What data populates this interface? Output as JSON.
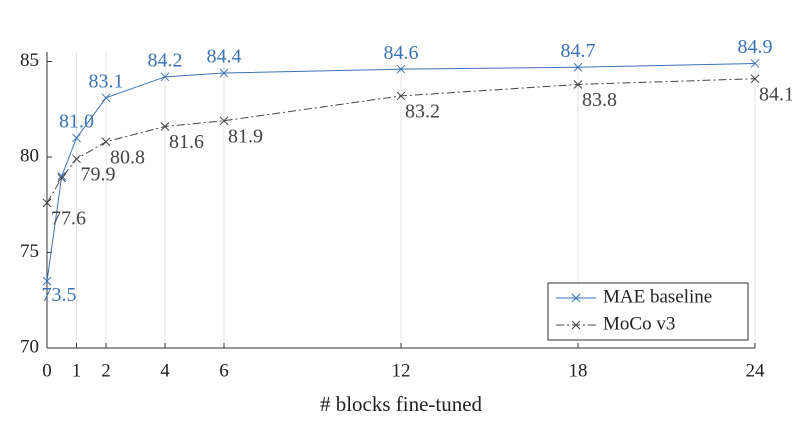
{
  "chart_data": {
    "type": "line",
    "xlabel": "# blocks fine-tuned",
    "x": [
      0,
      0.5,
      1,
      2,
      4,
      6,
      12,
      18,
      24
    ],
    "xlim": [
      0,
      24
    ],
    "xticks": [
      0,
      1,
      2,
      4,
      6,
      12,
      18,
      24
    ],
    "ylim": [
      70,
      85.5
    ],
    "yticks": [
      70,
      75,
      80,
      85
    ],
    "grid": "x",
    "legend": "lower right",
    "marker": "x",
    "series": [
      {
        "name": "MAE baseline",
        "color": "#3a73b5",
        "line_style": "solid",
        "values": [
          73.5,
          79.0,
          81.0,
          83.1,
          84.2,
          84.4,
          84.6,
          84.7,
          84.9
        ],
        "value_labels": [
          "73.5",
          null,
          "81.0",
          "83.1",
          "84.2",
          "84.4",
          "84.6",
          "84.7",
          "84.9"
        ]
      },
      {
        "name": "MoCo v3",
        "color": "#444444",
        "line_style": "dashdot",
        "values": [
          77.6,
          78.9,
          79.9,
          80.8,
          81.6,
          81.9,
          83.2,
          83.8,
          84.1
        ],
        "value_labels": [
          "77.6",
          null,
          "79.9",
          "80.8",
          "81.6",
          "81.9",
          "83.2",
          "83.8",
          "84.1"
        ]
      }
    ]
  }
}
